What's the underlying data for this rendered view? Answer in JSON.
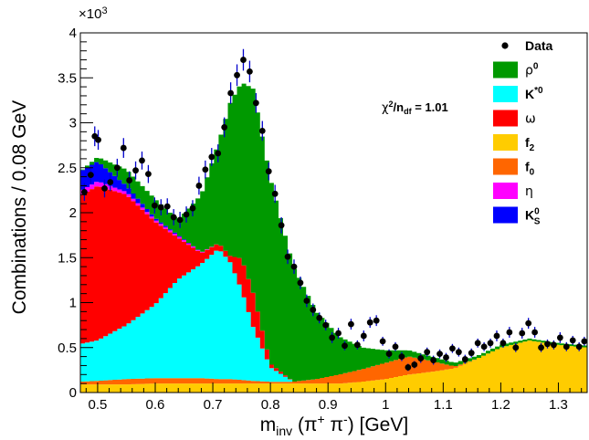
{
  "chart_data": {
    "type": "area",
    "xlabel": "m_inv (π⁺ π⁻) [GeV]",
    "xlabel_parts": {
      "main": "m",
      "sub": "inv",
      "rest": " (π",
      "sup1": "+",
      "mid": " π",
      "sup2": "-",
      "tail": ") [GeV]"
    },
    "ylabel": "Combinations / 0.08 GeV",
    "y_multiplier": "×10³",
    "y_multiplier_parts": {
      "base": "×10",
      "exp": "3"
    },
    "annotation": "χ²/n_df = 1.01",
    "annotation_parts": {
      "chi": "χ",
      "sup": "2",
      "slash": "/n",
      "sub": "df",
      "value": " = 1.01"
    },
    "xlim": [
      0.47,
      1.35
    ],
    "ylim": [
      0,
      4
    ],
    "x_ticks": [
      {
        "v": 0.5,
        "label": "0.5"
      },
      {
        "v": 0.6,
        "label": "0.6"
      },
      {
        "v": 0.7,
        "label": "0.7"
      },
      {
        "v": 0.8,
        "label": "0.8"
      },
      {
        "v": 0.9,
        "label": "0.9"
      },
      {
        "v": 1.0,
        "label": "1"
      },
      {
        "v": 1.1,
        "label": "1.1"
      },
      {
        "v": 1.2,
        "label": "1.2"
      },
      {
        "v": 1.3,
        "label": "1.3"
      }
    ],
    "y_ticks": [
      {
        "v": 0,
        "label": "0"
      },
      {
        "v": 0.5,
        "label": "0.5"
      },
      {
        "v": 1.0,
        "label": "1"
      },
      {
        "v": 1.5,
        "label": "1.5"
      },
      {
        "v": 2.0,
        "label": "2"
      },
      {
        "v": 2.5,
        "label": "2.5"
      },
      {
        "v": 3.0,
        "label": "3"
      },
      {
        "v": 3.5,
        "label": "3.5"
      },
      {
        "v": 4.0,
        "label": "4"
      }
    ],
    "legend": [
      {
        "key": "data",
        "label": "Data",
        "symbol": "marker",
        "color": "#000000"
      },
      {
        "key": "rho",
        "label": "ρ",
        "sup": "0",
        "symbol": "box",
        "color": "#009900"
      },
      {
        "key": "kstar",
        "label": "K",
        "sup": "*0",
        "symbol": "box",
        "color": "#00ffff"
      },
      {
        "key": "omega",
        "label": "ω",
        "symbol": "box",
        "color": "#ff0000"
      },
      {
        "key": "f2",
        "label": "f",
        "sub": "2",
        "symbol": "box",
        "color": "#ffcc00"
      },
      {
        "key": "f0",
        "label": "f",
        "sub": "0",
        "symbol": "box",
        "color": "#ff6600"
      },
      {
        "key": "eta",
        "label": "η",
        "symbol": "box",
        "color": "#ff00ff"
      },
      {
        "key": "ks",
        "label": "K",
        "sup": "0",
        "sub": "S",
        "symbol": "box",
        "color": "#0000ff"
      }
    ],
    "stack_order": [
      "f2",
      "f0",
      "kstar",
      "omega",
      "eta",
      "ks",
      "rho"
    ],
    "stack_knots": [
      {
        "x": 0.47,
        "f2": 0.09,
        "f0": 0.03,
        "kstar": 0.42,
        "omega": 1.65,
        "eta": 0.05,
        "ks": 0.22,
        "rho": 0.0
      },
      {
        "x": 0.5,
        "f2": 0.09,
        "f0": 0.04,
        "kstar": 0.45,
        "omega": 1.72,
        "eta": 0.05,
        "ks": 0.22,
        "rho": 0.05
      },
      {
        "x": 0.55,
        "f2": 0.09,
        "f0": 0.06,
        "kstar": 0.6,
        "omega": 1.45,
        "eta": 0.03,
        "ks": 0.07,
        "rho": 0.18
      },
      {
        "x": 0.6,
        "f2": 0.1,
        "f0": 0.06,
        "kstar": 0.82,
        "omega": 0.92,
        "eta": 0.02,
        "ks": 0.02,
        "rho": 0.21
      },
      {
        "x": 0.64,
        "f2": 0.1,
        "f0": 0.06,
        "kstar": 1.1,
        "omega": 0.46,
        "eta": 0.02,
        "ks": 0.01,
        "rho": 0.17
      },
      {
        "x": 0.68,
        "f2": 0.1,
        "f0": 0.06,
        "kstar": 1.27,
        "omega": 0.12,
        "eta": 0.01,
        "ks": 0.0,
        "rho": 0.64
      },
      {
        "x": 0.71,
        "f2": 0.1,
        "f0": 0.05,
        "kstar": 1.45,
        "omega": 0.06,
        "eta": 0.0,
        "ks": 0.0,
        "rho": 1.12
      },
      {
        "x": 0.73,
        "f2": 0.1,
        "f0": 0.05,
        "kstar": 1.3,
        "omega": 0.07,
        "eta": 0.0,
        "ks": 0.0,
        "rho": 1.7
      },
      {
        "x": 0.75,
        "f2": 0.1,
        "f0": 0.04,
        "kstar": 1.0,
        "omega": 0.35,
        "eta": 0.0,
        "ks": 0.0,
        "rho": 1.96
      },
      {
        "x": 0.77,
        "f2": 0.1,
        "f0": 0.03,
        "kstar": 0.6,
        "omega": 0.38,
        "eta": 0.0,
        "ks": 0.0,
        "rho": 2.27
      },
      {
        "x": 0.8,
        "f2": 0.1,
        "f0": 0.02,
        "kstar": 0.16,
        "omega": 0.04,
        "eta": 0.0,
        "ks": 0.0,
        "rho": 2.06
      },
      {
        "x": 0.84,
        "f2": 0.1,
        "f0": 0.02,
        "kstar": 0.0,
        "omega": 0.0,
        "eta": 0.0,
        "ks": 0.0,
        "rho": 1.28
      },
      {
        "x": 0.88,
        "f2": 0.1,
        "f0": 0.05,
        "kstar": 0.0,
        "omega": 0.0,
        "eta": 0.0,
        "ks": 0.0,
        "rho": 0.75
      },
      {
        "x": 0.92,
        "f2": 0.1,
        "f0": 0.1,
        "kstar": 0.0,
        "omega": 0.0,
        "eta": 0.0,
        "ks": 0.0,
        "rho": 0.42
      },
      {
        "x": 0.96,
        "f2": 0.12,
        "f0": 0.14,
        "kstar": 0.0,
        "omega": 0.0,
        "eta": 0.0,
        "ks": 0.0,
        "rho": 0.24
      },
      {
        "x": 1.0,
        "f2": 0.15,
        "f0": 0.18,
        "kstar": 0.0,
        "omega": 0.0,
        "eta": 0.0,
        "ks": 0.0,
        "rho": 0.14
      },
      {
        "x": 1.04,
        "f2": 0.2,
        "f0": 0.2,
        "kstar": 0.0,
        "omega": 0.0,
        "eta": 0.0,
        "ks": 0.0,
        "rho": 0.07
      },
      {
        "x": 1.08,
        "f2": 0.23,
        "f0": 0.12,
        "kstar": 0.0,
        "omega": 0.0,
        "eta": 0.0,
        "ks": 0.0,
        "rho": 0.05
      },
      {
        "x": 1.12,
        "f2": 0.27,
        "f0": 0.02,
        "kstar": 0.0,
        "omega": 0.0,
        "eta": 0.0,
        "ks": 0.0,
        "rho": 0.04
      },
      {
        "x": 1.16,
        "f2": 0.38,
        "f0": 0.0,
        "kstar": 0.0,
        "omega": 0.0,
        "eta": 0.0,
        "ks": 0.0,
        "rho": 0.03
      },
      {
        "x": 1.2,
        "f2": 0.5,
        "f0": 0.0,
        "kstar": 0.0,
        "omega": 0.0,
        "eta": 0.0,
        "ks": 0.0,
        "rho": 0.03
      },
      {
        "x": 1.25,
        "f2": 0.58,
        "f0": 0.0,
        "kstar": 0.0,
        "omega": 0.0,
        "eta": 0.0,
        "ks": 0.0,
        "rho": 0.02
      },
      {
        "x": 1.3,
        "f2": 0.53,
        "f0": 0.0,
        "kstar": 0.0,
        "omega": 0.0,
        "eta": 0.0,
        "ks": 0.0,
        "rho": 0.02
      },
      {
        "x": 1.35,
        "f2": 0.5,
        "f0": 0.0,
        "kstar": 0.0,
        "omega": 0.0,
        "eta": 0.0,
        "ks": 0.0,
        "rho": 0.02
      }
    ],
    "data_points": [
      [
        0.477,
        2.23,
        0.1
      ],
      [
        0.488,
        2.42,
        0.1
      ],
      [
        0.495,
        2.85,
        0.11
      ],
      [
        0.501,
        2.81,
        0.11
      ],
      [
        0.512,
        2.27,
        0.1
      ],
      [
        0.522,
        2.34,
        0.1
      ],
      [
        0.534,
        2.5,
        0.1
      ],
      [
        0.545,
        2.72,
        0.11
      ],
      [
        0.555,
        2.36,
        0.1
      ],
      [
        0.566,
        2.47,
        0.1
      ],
      [
        0.577,
        2.58,
        0.1
      ],
      [
        0.588,
        2.43,
        0.1
      ],
      [
        0.599,
        2.08,
        0.09
      ],
      [
        0.61,
        2.06,
        0.09
      ],
      [
        0.621,
        2.07,
        0.09
      ],
      [
        0.632,
        1.95,
        0.09
      ],
      [
        0.643,
        1.92,
        0.09
      ],
      [
        0.654,
        1.98,
        0.09
      ],
      [
        0.665,
        2.05,
        0.09
      ],
      [
        0.676,
        2.3,
        0.1
      ],
      [
        0.687,
        2.48,
        0.1
      ],
      [
        0.698,
        2.62,
        0.1
      ],
      [
        0.709,
        2.66,
        0.1
      ],
      [
        0.72,
        2.95,
        0.11
      ],
      [
        0.731,
        3.33,
        0.12
      ],
      [
        0.742,
        3.53,
        0.12
      ],
      [
        0.753,
        3.7,
        0.12
      ],
      [
        0.764,
        3.57,
        0.12
      ],
      [
        0.775,
        3.22,
        0.11
      ],
      [
        0.786,
        2.91,
        0.11
      ],
      [
        0.797,
        2.46,
        0.1
      ],
      [
        0.808,
        2.21,
        0.1
      ],
      [
        0.819,
        1.86,
        0.09
      ],
      [
        0.83,
        1.51,
        0.08
      ],
      [
        0.841,
        1.4,
        0.08
      ],
      [
        0.852,
        1.22,
        0.07
      ],
      [
        0.863,
        1.02,
        0.07
      ],
      [
        0.874,
        0.92,
        0.07
      ],
      [
        0.885,
        0.83,
        0.06
      ],
      [
        0.896,
        0.75,
        0.06
      ],
      [
        0.907,
        0.61,
        0.06
      ],
      [
        0.918,
        0.66,
        0.06
      ],
      [
        0.929,
        0.52,
        0.05
      ],
      [
        0.94,
        0.76,
        0.06
      ],
      [
        0.951,
        0.53,
        0.05
      ],
      [
        0.962,
        0.63,
        0.06
      ],
      [
        0.973,
        0.78,
        0.06
      ],
      [
        0.984,
        0.8,
        0.06
      ],
      [
        0.995,
        0.57,
        0.05
      ],
      [
        1.006,
        0.43,
        0.05
      ],
      [
        1.017,
        0.51,
        0.05
      ],
      [
        1.028,
        0.4,
        0.05
      ],
      [
        1.039,
        0.28,
        0.04
      ],
      [
        1.05,
        0.31,
        0.04
      ],
      [
        1.061,
        0.38,
        0.05
      ],
      [
        1.072,
        0.45,
        0.05
      ],
      [
        1.083,
        0.36,
        0.05
      ],
      [
        1.094,
        0.43,
        0.05
      ],
      [
        1.105,
        0.39,
        0.05
      ],
      [
        1.116,
        0.49,
        0.05
      ],
      [
        1.127,
        0.45,
        0.05
      ],
      [
        1.138,
        0.37,
        0.05
      ],
      [
        1.149,
        0.44,
        0.05
      ],
      [
        1.16,
        0.55,
        0.05
      ],
      [
        1.171,
        0.51,
        0.05
      ],
      [
        1.182,
        0.55,
        0.05
      ],
      [
        1.193,
        0.63,
        0.06
      ],
      [
        1.204,
        0.55,
        0.05
      ],
      [
        1.215,
        0.67,
        0.06
      ],
      [
        1.226,
        0.5,
        0.05
      ],
      [
        1.237,
        0.66,
        0.06
      ],
      [
        1.248,
        0.77,
        0.06
      ],
      [
        1.259,
        0.67,
        0.06
      ],
      [
        1.27,
        0.5,
        0.05
      ],
      [
        1.281,
        0.54,
        0.05
      ],
      [
        1.292,
        0.53,
        0.05
      ],
      [
        1.303,
        0.61,
        0.06
      ],
      [
        1.314,
        0.51,
        0.05
      ],
      [
        1.325,
        0.58,
        0.05
      ],
      [
        1.336,
        0.51,
        0.05
      ],
      [
        1.345,
        0.57,
        0.05
      ]
    ]
  }
}
